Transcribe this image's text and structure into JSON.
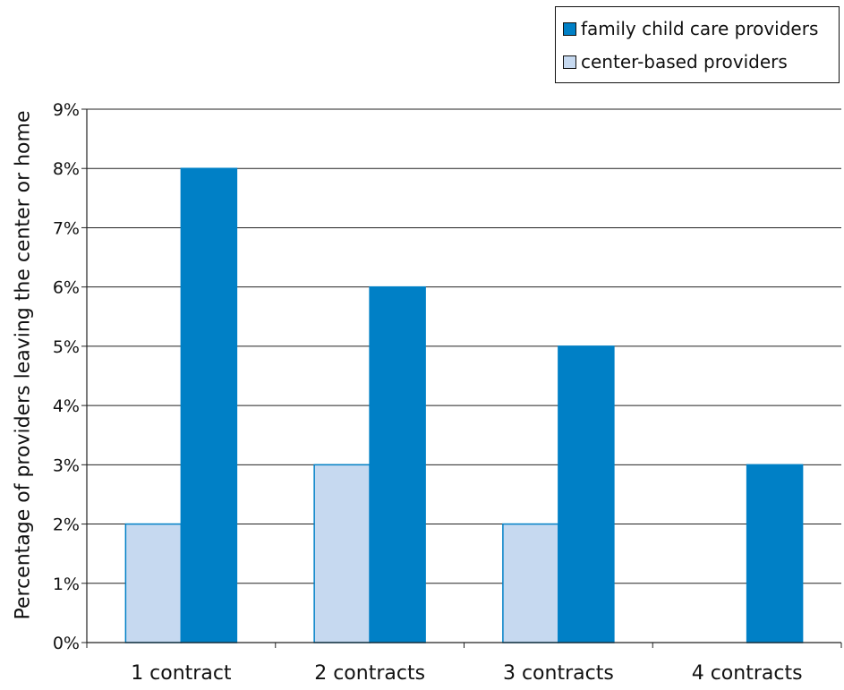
{
  "chart_data": {
    "type": "bar",
    "categories": [
      "1 contract",
      "2 contracts",
      "3 contracts",
      "4 contracts"
    ],
    "series": [
      {
        "name": "center-based providers",
        "values": [
          2,
          3,
          2,
          null
        ],
        "color": "#c6d9f0"
      },
      {
        "name": "family child care providers",
        "values": [
          8,
          6,
          5,
          3
        ],
        "color": "#0080c6"
      }
    ],
    "title": "",
    "xlabel": "",
    "ylabel": "Percentage of providers leaving the center or home",
    "ylim": [
      0,
      9
    ],
    "y_ticks": [
      "0%",
      "1%",
      "2%",
      "3%",
      "4%",
      "5%",
      "6%",
      "7%",
      "8%",
      "9%"
    ],
    "grid": true,
    "legend": {
      "placement": "top-right",
      "entries": [
        "family child care providers",
        "center-based providers"
      ]
    }
  }
}
